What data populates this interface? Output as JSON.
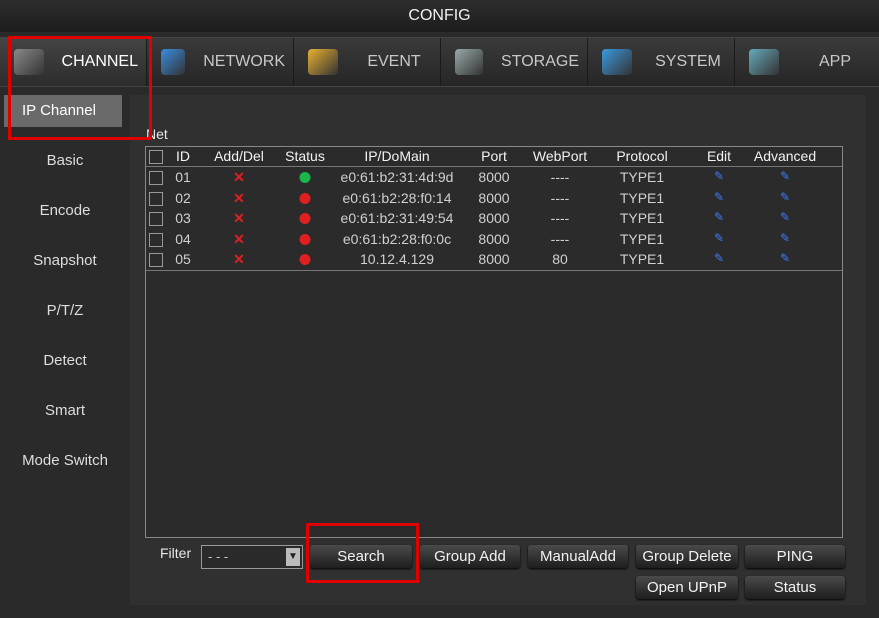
{
  "title": "CONFIG",
  "tabs": [
    {
      "label": "CHANNEL",
      "icon": "channel-camera-gear-icon",
      "active": true
    },
    {
      "label": "NETWORK",
      "icon": "network-gear-icon"
    },
    {
      "label": "EVENT",
      "icon": "event-calendar-icon"
    },
    {
      "label": "STORAGE",
      "icon": "storage-gear-icon"
    },
    {
      "label": "SYSTEM",
      "icon": "system-monitor-icon"
    },
    {
      "label": "APP",
      "icon": "app-icon"
    }
  ],
  "sidebar": [
    "IP Channel",
    "Basic",
    "Encode",
    "Snapshot",
    "P/T/Z",
    "Detect",
    "Smart",
    "Mode Switch"
  ],
  "net_label": "Net",
  "columns": [
    "ID",
    "Add/Del",
    "Status",
    "IP/DoMain",
    "Port",
    "WebPort",
    "Protocol",
    "Edit",
    "Advanced"
  ],
  "rows": [
    {
      "id": "01",
      "status": "online",
      "ip": "e0:61:b2:31:4d:9d",
      "port": "8000",
      "webport": "----",
      "protocol": "TYPE1"
    },
    {
      "id": "02",
      "status": "offline",
      "ip": "e0:61:b2:28:f0:14",
      "port": "8000",
      "webport": "----",
      "protocol": "TYPE1"
    },
    {
      "id": "03",
      "status": "offline",
      "ip": "e0:61:b2:31:49:54",
      "port": "8000",
      "webport": "----",
      "protocol": "TYPE1"
    },
    {
      "id": "04",
      "status": "offline",
      "ip": "e0:61:b2:28:f0:0c",
      "port": "8000",
      "webport": "----",
      "protocol": "TYPE1"
    },
    {
      "id": "05",
      "status": "offline",
      "ip": "10.12.4.129",
      "port": "8000",
      "webport": "80",
      "protocol": "TYPE1"
    }
  ],
  "filter": {
    "label": "Filter",
    "value": "- - -"
  },
  "buttons": {
    "search": "Search",
    "group_add": "Group Add",
    "manual_add": "ManualAdd",
    "group_delete": "Group Delete",
    "ping": "PING",
    "open_upnp": "Open UPnP",
    "status": "Status"
  },
  "colors": {
    "online": "#19b64a",
    "offline": "#e02020",
    "highlight": "#e00000",
    "edit": "#3b7bff"
  }
}
